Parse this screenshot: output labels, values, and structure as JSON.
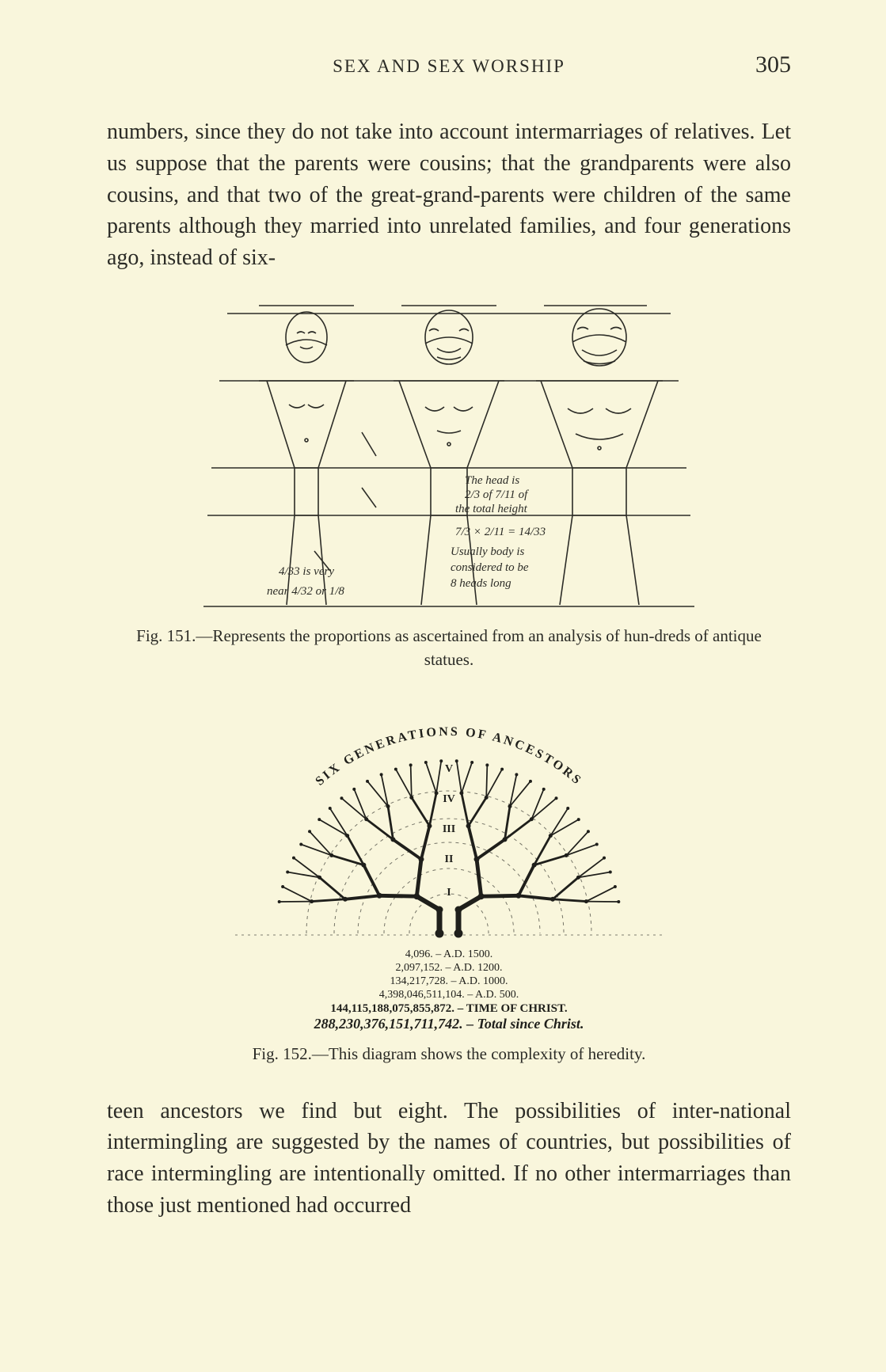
{
  "header": {
    "running_title": "SEX AND SEX WORSHIP",
    "page_number": "305"
  },
  "paragraphs": {
    "p1": "numbers, since they do not take into account intermarriages of relatives. Let us suppose that the parents were cousins; that the grandparents were also cousins, and that two of the great-grand-parents were children of the same parents although they married into unrelated families, and four generations ago, instead of six-",
    "p2": "teen ancestors we find but eight. The possibilities of inter-national intermingling are suggested by the names of countries, but possibilities of race intermingling are intentionally omitted. If no other intermarriages than those just mentioned had occurred"
  },
  "figure151": {
    "annotations": {
      "left_note_line1": "4/33 is very",
      "left_note_line2": "near 4/32 or 1/8",
      "mid_note_line1": "The head is",
      "mid_note_line2": "2/3 of 7/11 of",
      "mid_note_line3": "the total height",
      "right_note_line1": "7/3 × 2/11 = 14/33",
      "right_note_line2": "Usually body is",
      "right_note_line3": "considered to be",
      "right_note_line4": "8 heads long"
    },
    "caption": "Fig. 151.—Represents the proportions as ascertained from an analysis of hun-dreds of antique statues.",
    "stroke": "#2c2c27",
    "fill_bg": "#f9f6dc"
  },
  "figure152": {
    "arc_label": "SIX GENERATIONS OF ANCESTORS",
    "roman": [
      "I",
      "II",
      "III",
      "IV",
      "V"
    ],
    "legend_lines": [
      "4,096.  –  A.D. 1500.",
      "2,097,152.  –  A.D. 1200.",
      "134,217,728.  –  A.D. 1000.",
      "4,398,046,511,104.  –  A.D. 500.",
      "144,115,188,075,855,872. – TIME OF CHRIST.",
      "288,230,376,151,711,742. – Total since Christ."
    ],
    "caption": "Fig. 152.—This diagram shows the complexity of heredity.",
    "stroke": "#1f1f1b",
    "fill_bg": "#f9f6dc"
  }
}
